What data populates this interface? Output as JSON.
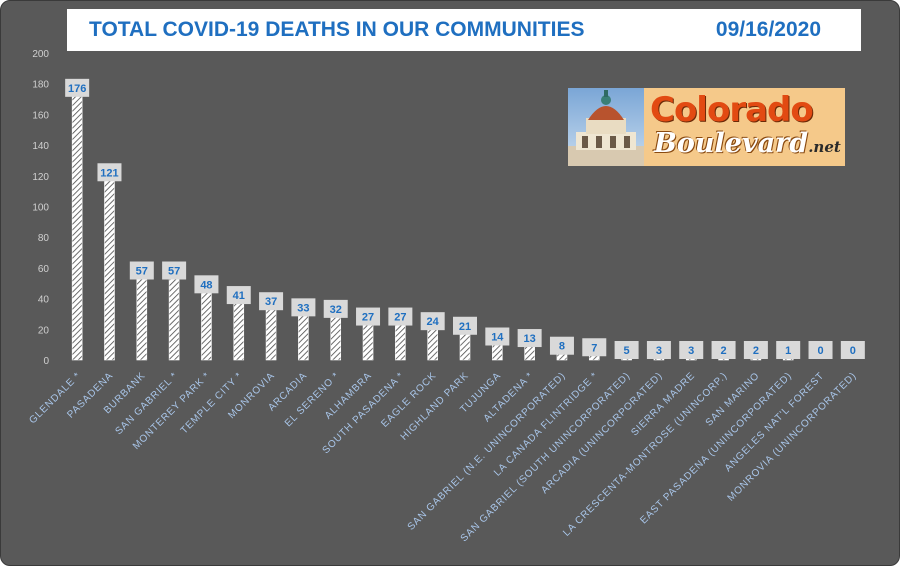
{
  "title": {
    "text": "TOTAL COVID-19 DEATHS IN OUR COMMUNITIES",
    "date": "09/16/2020"
  },
  "logo": {
    "line1": "Colorado",
    "line2": "Boulevard",
    "suffix": ".net"
  },
  "colors": {
    "background": "#595959",
    "title_text": "#1f6fc0",
    "bar_fill": "#ffffff",
    "label_box": "#d9d9d9",
    "label_text": "#1f6fc0",
    "axis_text": "#d0d0d0",
    "category_text": "#a9c6ea"
  },
  "chart_data": {
    "type": "bar",
    "title": "TOTAL COVID-19 DEATHS IN OUR COMMUNITIES",
    "ylim": [
      0,
      200
    ],
    "yticks": [
      0,
      20,
      40,
      60,
      80,
      100,
      120,
      140,
      160,
      180,
      200
    ],
    "grid": false,
    "legend": "none",
    "categories": [
      "GLENDALE *",
      "PASADENA",
      "BURBANK",
      "SAN GABRIEL *",
      "MONTEREY PARK *",
      "TEMPLE CITY *",
      "MONROVIA",
      "ARCADIA",
      "EL SERENO *",
      "ALHAMBRA",
      "SOUTH PASADENA *",
      "EAGLE ROCK",
      "HIGHLAND PARK",
      "TUJUNGA",
      "ALTADENA *",
      "SAN GABRIEL (N.E. UNINCORPORATED)",
      "LA CANADA FLINTRIDGE *",
      "SAN GABRIEL (SOUTH UNINCORPORATED)",
      "ARCADIA (UNINCORPORATED)",
      "SIERRA MADRE",
      "LA CRESCENTA-MONTROSE (UNINCORP.)",
      "SAN MARINO",
      "EAST PASADENA (UNINCORPORATED)",
      "ANGELES NAT'L FOREST",
      "MONROVIA (UNINCORPORATED)"
    ],
    "values": [
      176,
      121,
      57,
      57,
      48,
      41,
      37,
      33,
      32,
      27,
      27,
      24,
      21,
      14,
      13,
      8,
      7,
      5,
      3,
      3,
      2,
      2,
      1,
      0,
      0
    ]
  }
}
